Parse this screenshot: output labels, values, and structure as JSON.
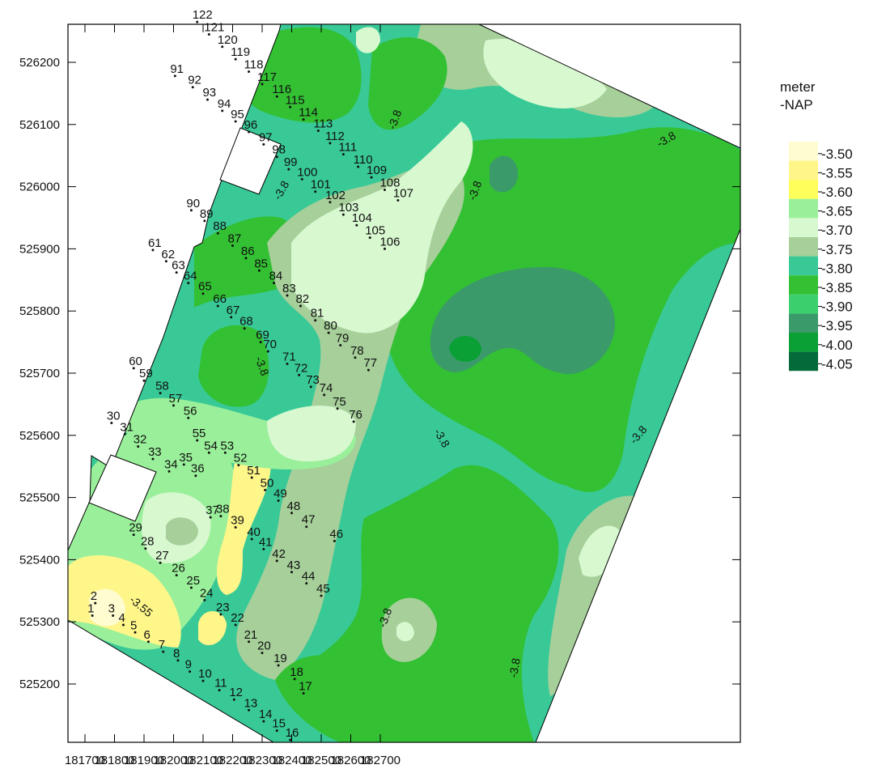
{
  "legend": {
    "title_line1": "meter",
    "title_line2": "-NAP",
    "entries": [
      {
        "label": "-3.50",
        "color": "#fffdd0"
      },
      {
        "label": "-3.55",
        "color": "#fff68a"
      },
      {
        "label": "-3.60",
        "color": "#ffff5c"
      },
      {
        "label": "-3.65",
        "color": "#9af09a"
      },
      {
        "label": "-3.70",
        "color": "#d8f8d0"
      },
      {
        "label": "-3.75",
        "color": "#a6cf9a"
      },
      {
        "label": "-3.80",
        "color": "#38c997"
      },
      {
        "label": "-3.85",
        "color": "#33c033"
      },
      {
        "label": "-3.90",
        "color": "#3ccf6e"
      },
      {
        "label": "-3.95",
        "color": "#3a9a6a"
      },
      {
        "label": "-4.00",
        "color": "#0aa035"
      },
      {
        "label": "-4.05",
        "color": "#056a3a"
      }
    ]
  },
  "x_axis": {
    "ticks": [
      "181700",
      "181800",
      "181900",
      "182000",
      "182100",
      "182200",
      "182300",
      "182400",
      "182500",
      "182600",
      "182700"
    ]
  },
  "y_axis": {
    "ticks": [
      "526200",
      "526100",
      "526000",
      "525900",
      "525800",
      "525700",
      "525600",
      "525500",
      "525400",
      "525300",
      "525200"
    ]
  },
  "contour_labels": [
    "-3.8",
    "-3.8",
    "-3.8",
    "-3.8",
    "-3.8",
    "-3.8",
    "-3.8",
    "-3.8",
    "-3.55",
    "-3.8"
  ],
  "points": [
    {
      "id": "1",
      "x": 181725,
      "y": 525310
    },
    {
      "id": "2",
      "x": 181735,
      "y": 525330
    },
    {
      "id": "3",
      "x": 181795,
      "y": 525310
    },
    {
      "id": "4",
      "x": 181830,
      "y": 525295
    },
    {
      "id": "5",
      "x": 181870,
      "y": 525283
    },
    {
      "id": "6",
      "x": 181915,
      "y": 525268
    },
    {
      "id": "7",
      "x": 181965,
      "y": 525252
    },
    {
      "id": "8",
      "x": 182015,
      "y": 525238
    },
    {
      "id": "9",
      "x": 182055,
      "y": 525220
    },
    {
      "id": "10",
      "x": 182100,
      "y": 525205
    },
    {
      "id": "11",
      "x": 182155,
      "y": 525190
    },
    {
      "id": "12",
      "x": 182205,
      "y": 525175
    },
    {
      "id": "13",
      "x": 182255,
      "y": 525158
    },
    {
      "id": "14",
      "x": 182305,
      "y": 525140
    },
    {
      "id": "15",
      "x": 182350,
      "y": 525125
    },
    {
      "id": "16",
      "x": 182395,
      "y": 525110
    },
    {
      "id": "17",
      "x": 182440,
      "y": 525185
    },
    {
      "id": "18",
      "x": 182410,
      "y": 525208
    },
    {
      "id": "19",
      "x": 182355,
      "y": 525230
    },
    {
      "id": "20",
      "x": 182300,
      "y": 525250
    },
    {
      "id": "21",
      "x": 182255,
      "y": 525268
    },
    {
      "id": "22",
      "x": 182210,
      "y": 525295
    },
    {
      "id": "23",
      "x": 182160,
      "y": 525312
    },
    {
      "id": "24",
      "x": 182105,
      "y": 525335
    },
    {
      "id": "25",
      "x": 182060,
      "y": 525355
    },
    {
      "id": "26",
      "x": 182010,
      "y": 525375
    },
    {
      "id": "27",
      "x": 181955,
      "y": 525395
    },
    {
      "id": "28",
      "x": 181905,
      "y": 525418
    },
    {
      "id": "29",
      "x": 181865,
      "y": 525440
    },
    {
      "id": "30",
      "x": 181790,
      "y": 525620
    },
    {
      "id": "31",
      "x": 181835,
      "y": 525602
    },
    {
      "id": "32",
      "x": 181880,
      "y": 525582
    },
    {
      "id": "33",
      "x": 181930,
      "y": 525562
    },
    {
      "id": "34",
      "x": 181985,
      "y": 525542
    },
    {
      "id": "35",
      "x": 182035,
      "y": 525553
    },
    {
      "id": "36",
      "x": 182075,
      "y": 525535
    },
    {
      "id": "37",
      "x": 182125,
      "y": 525468
    },
    {
      "id": "38",
      "x": 182160,
      "y": 525470
    },
    {
      "id": "39",
      "x": 182210,
      "y": 525452
    },
    {
      "id": "40",
      "x": 182265,
      "y": 525433
    },
    {
      "id": "41",
      "x": 182305,
      "y": 525417
    },
    {
      "id": "42",
      "x": 182350,
      "y": 525398
    },
    {
      "id": "43",
      "x": 182400,
      "y": 525380
    },
    {
      "id": "44",
      "x": 182450,
      "y": 525362
    },
    {
      "id": "45",
      "x": 182500,
      "y": 525342
    },
    {
      "id": "46",
      "x": 182545,
      "y": 525430
    },
    {
      "id": "47",
      "x": 182450,
      "y": 525453
    },
    {
      "id": "48",
      "x": 182400,
      "y": 525475
    },
    {
      "id": "49",
      "x": 182355,
      "y": 525495
    },
    {
      "id": "50",
      "x": 182310,
      "y": 525512
    },
    {
      "id": "51",
      "x": 182265,
      "y": 525532
    },
    {
      "id": "52",
      "x": 182220,
      "y": 525552
    },
    {
      "id": "53",
      "x": 182175,
      "y": 525572
    },
    {
      "id": "54",
      "x": 182120,
      "y": 525572
    },
    {
      "id": "55",
      "x": 182080,
      "y": 525592
    },
    {
      "id": "56",
      "x": 182050,
      "y": 525628
    },
    {
      "id": "57",
      "x": 182000,
      "y": 525648
    },
    {
      "id": "58",
      "x": 181955,
      "y": 525668
    },
    {
      "id": "59",
      "x": 181900,
      "y": 525688
    },
    {
      "id": "60",
      "x": 181865,
      "y": 525708
    },
    {
      "id": "61",
      "x": 181930,
      "y": 525898
    },
    {
      "id": "62",
      "x": 181975,
      "y": 525880
    },
    {
      "id": "63",
      "x": 182010,
      "y": 525862
    },
    {
      "id": "64",
      "x": 182050,
      "y": 525845
    },
    {
      "id": "65",
      "x": 182100,
      "y": 525828
    },
    {
      "id": "66",
      "x": 182150,
      "y": 525808
    },
    {
      "id": "67",
      "x": 182195,
      "y": 525790
    },
    {
      "id": "68",
      "x": 182240,
      "y": 525772
    },
    {
      "id": "69",
      "x": 182295,
      "y": 525750
    },
    {
      "id": "70",
      "x": 182320,
      "y": 525735
    },
    {
      "id": "71",
      "x": 182385,
      "y": 525715
    },
    {
      "id": "72",
      "x": 182425,
      "y": 525697
    },
    {
      "id": "73",
      "x": 182465,
      "y": 525678
    },
    {
      "id": "74",
      "x": 182510,
      "y": 525665
    },
    {
      "id": "75",
      "x": 182555,
      "y": 525643
    },
    {
      "id": "76",
      "x": 182610,
      "y": 525622
    },
    {
      "id": "77",
      "x": 182660,
      "y": 525705
    },
    {
      "id": "78",
      "x": 182615,
      "y": 525725
    },
    {
      "id": "79",
      "x": 182565,
      "y": 525745
    },
    {
      "id": "80",
      "x": 182525,
      "y": 525765
    },
    {
      "id": "81",
      "x": 182480,
      "y": 525785
    },
    {
      "id": "82",
      "x": 182430,
      "y": 525808
    },
    {
      "id": "83",
      "x": 182385,
      "y": 525825
    },
    {
      "id": "84",
      "x": 182340,
      "y": 525845
    },
    {
      "id": "85",
      "x": 182290,
      "y": 525865
    },
    {
      "id": "86",
      "x": 182245,
      "y": 525885
    },
    {
      "id": "87",
      "x": 182200,
      "y": 525905
    },
    {
      "id": "88",
      "x": 182150,
      "y": 525925
    },
    {
      "id": "89",
      "x": 182105,
      "y": 525945
    },
    {
      "id": "90",
      "x": 182060,
      "y": 525962
    },
    {
      "id": "91",
      "x": 182005,
      "y": 526178
    },
    {
      "id": "92",
      "x": 182065,
      "y": 526160
    },
    {
      "id": "93",
      "x": 182115,
      "y": 526140
    },
    {
      "id": "94",
      "x": 182165,
      "y": 526122
    },
    {
      "id": "95",
      "x": 182210,
      "y": 526105
    },
    {
      "id": "96",
      "x": 182255,
      "y": 526088
    },
    {
      "id": "97",
      "x": 182305,
      "y": 526068
    },
    {
      "id": "98",
      "x": 182350,
      "y": 526048
    },
    {
      "id": "99",
      "x": 182390,
      "y": 526028
    },
    {
      "id": "100",
      "x": 182435,
      "y": 526012
    },
    {
      "id": "101",
      "x": 182480,
      "y": 525992
    },
    {
      "id": "102",
      "x": 182530,
      "y": 525975
    },
    {
      "id": "103",
      "x": 182575,
      "y": 525955
    },
    {
      "id": "104",
      "x": 182620,
      "y": 525938
    },
    {
      "id": "105",
      "x": 182665,
      "y": 525918
    },
    {
      "id": "106",
      "x": 182715,
      "y": 525900
    },
    {
      "id": "107",
      "x": 182760,
      "y": 525978
    },
    {
      "id": "108",
      "x": 182715,
      "y": 525995
    },
    {
      "id": "109",
      "x": 182670,
      "y": 526015
    },
    {
      "id": "110",
      "x": 182625,
      "y": 526032
    },
    {
      "id": "111",
      "x": 182575,
      "y": 526052
    },
    {
      "id": "112",
      "x": 182530,
      "y": 526070
    },
    {
      "id": "113",
      "x": 182490,
      "y": 526090
    },
    {
      "id": "114",
      "x": 182440,
      "y": 526108
    },
    {
      "id": "115",
      "x": 182395,
      "y": 526128
    },
    {
      "id": "116",
      "x": 182350,
      "y": 526145
    },
    {
      "id": "117",
      "x": 182300,
      "y": 526165
    },
    {
      "id": "118",
      "x": 182255,
      "y": 526185
    },
    {
      "id": "119",
      "x": 182210,
      "y": 526205
    },
    {
      "id": "120",
      "x": 182165,
      "y": 526225
    },
    {
      "id": "121",
      "x": 182120,
      "y": 526245
    },
    {
      "id": "122",
      "x": 182080,
      "y": 526265
    }
  ]
}
